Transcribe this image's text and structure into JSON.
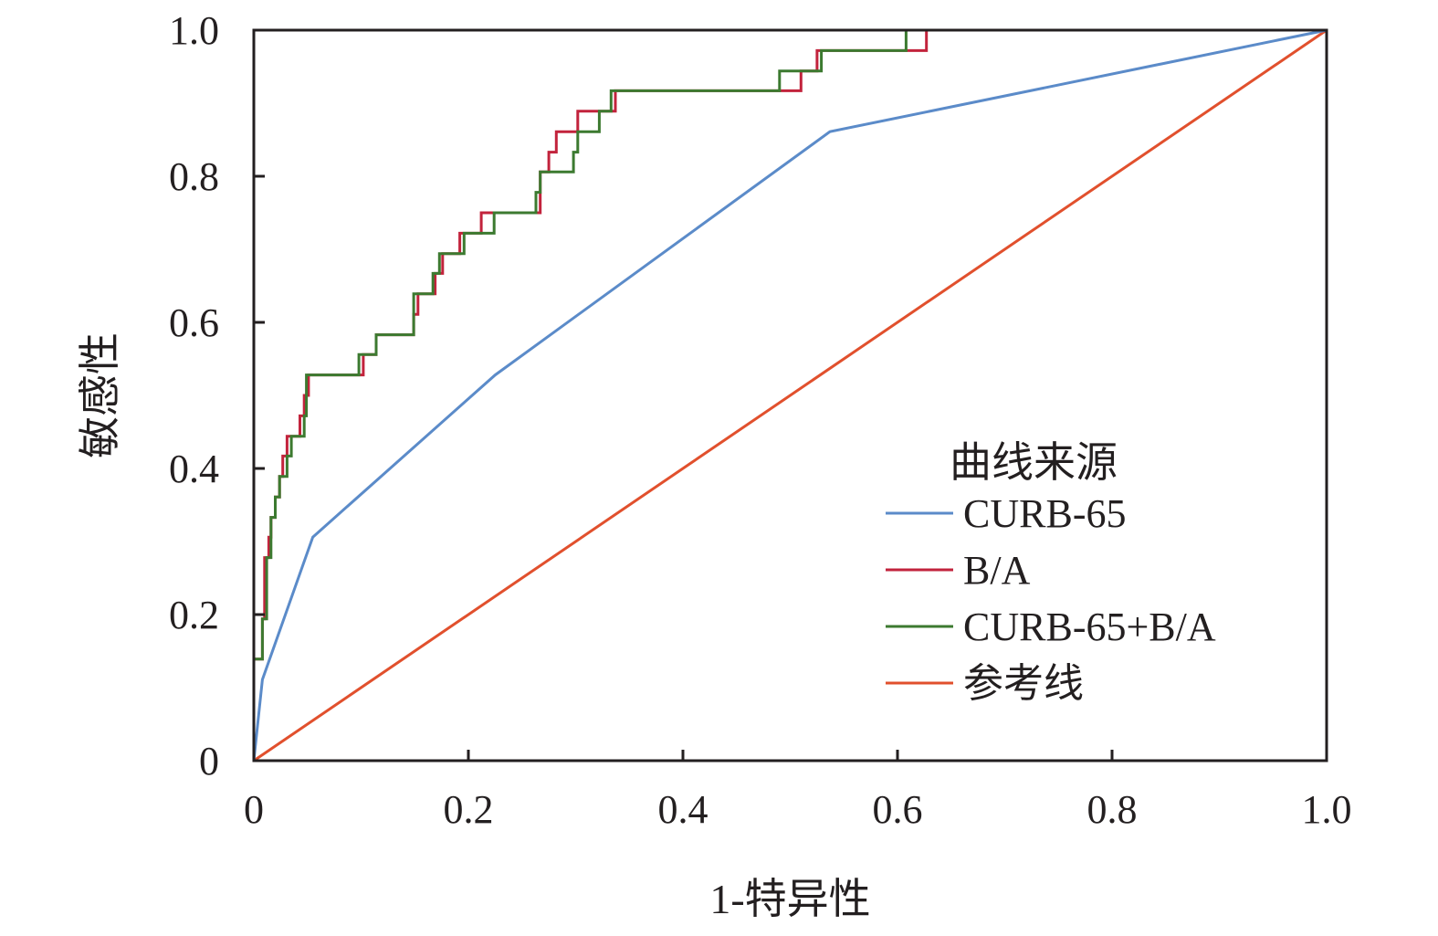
{
  "chart_data": {
    "type": "line",
    "title": "",
    "xlabel": "1-特异性",
    "ylabel": "敏感性",
    "xlim": [
      0,
      1
    ],
    "ylim": [
      0,
      1
    ],
    "x_ticks": [
      0,
      0.2,
      0.4,
      0.6,
      0.8,
      1.0
    ],
    "y_ticks": [
      0,
      0.2,
      0.4,
      0.6,
      0.8,
      1.0
    ],
    "x_tick_labels": [
      "0",
      "0.2",
      "0.4",
      "0.6",
      "0.8",
      "1.0"
    ],
    "y_tick_labels": [
      "0",
      "0.2",
      "0.4",
      "0.6",
      "0.8",
      "1.0"
    ],
    "grid": false,
    "legend": {
      "title": "曲线来源",
      "position": "lower-right inside plot"
    },
    "series": [
      {
        "name": "CURB-65",
        "color": "#5b8bc9",
        "points": [
          [
            0,
            0
          ],
          [
            0.008,
            0.111
          ],
          [
            0.055,
            0.306
          ],
          [
            0.225,
            0.528
          ],
          [
            0.537,
            0.861
          ],
          [
            1.0,
            1.0
          ]
        ]
      },
      {
        "name": "B/A",
        "color": "#c2233c",
        "points": [
          [
            0,
            0
          ],
          [
            0,
            0.139
          ],
          [
            0.008,
            0.139
          ],
          [
            0.008,
            0.194
          ],
          [
            0.01,
            0.194
          ],
          [
            0.01,
            0.278
          ],
          [
            0.014,
            0.278
          ],
          [
            0.014,
            0.306
          ],
          [
            0.016,
            0.306
          ],
          [
            0.016,
            0.333
          ],
          [
            0.02,
            0.333
          ],
          [
            0.02,
            0.361
          ],
          [
            0.024,
            0.361
          ],
          [
            0.024,
            0.389
          ],
          [
            0.027,
            0.389
          ],
          [
            0.027,
            0.417
          ],
          [
            0.031,
            0.417
          ],
          [
            0.031,
            0.444
          ],
          [
            0.043,
            0.444
          ],
          [
            0.043,
            0.472
          ],
          [
            0.047,
            0.472
          ],
          [
            0.047,
            0.5
          ],
          [
            0.051,
            0.5
          ],
          [
            0.051,
            0.528
          ],
          [
            0.102,
            0.528
          ],
          [
            0.102,
            0.556
          ],
          [
            0.114,
            0.556
          ],
          [
            0.114,
            0.583
          ],
          [
            0.149,
            0.583
          ],
          [
            0.149,
            0.611
          ],
          [
            0.153,
            0.611
          ],
          [
            0.153,
            0.639
          ],
          [
            0.169,
            0.639
          ],
          [
            0.169,
            0.667
          ],
          [
            0.176,
            0.667
          ],
          [
            0.176,
            0.694
          ],
          [
            0.192,
            0.694
          ],
          [
            0.192,
            0.722
          ],
          [
            0.212,
            0.722
          ],
          [
            0.212,
            0.75
          ],
          [
            0.267,
            0.75
          ],
          [
            0.267,
            0.806
          ],
          [
            0.275,
            0.806
          ],
          [
            0.275,
            0.833
          ],
          [
            0.282,
            0.833
          ],
          [
            0.282,
            0.861
          ],
          [
            0.302,
            0.861
          ],
          [
            0.302,
            0.889
          ],
          [
            0.314,
            0.889
          ],
          [
            0.314,
            0.889
          ],
          [
            0.337,
            0.889
          ],
          [
            0.337,
            0.917
          ],
          [
            0.51,
            0.917
          ],
          [
            0.51,
            0.944
          ],
          [
            0.525,
            0.944
          ],
          [
            0.525,
            0.972
          ],
          [
            0.627,
            0.972
          ],
          [
            0.627,
            1.0
          ],
          [
            1.0,
            1.0
          ]
        ]
      },
      {
        "name": "CURB-65+B/A",
        "color": "#3c7a30",
        "points": [
          [
            0,
            0
          ],
          [
            0,
            0.139
          ],
          [
            0.008,
            0.139
          ],
          [
            0.008,
            0.194
          ],
          [
            0.012,
            0.194
          ],
          [
            0.012,
            0.278
          ],
          [
            0.016,
            0.278
          ],
          [
            0.016,
            0.333
          ],
          [
            0.02,
            0.333
          ],
          [
            0.02,
            0.361
          ],
          [
            0.024,
            0.361
          ],
          [
            0.024,
            0.389
          ],
          [
            0.031,
            0.389
          ],
          [
            0.031,
            0.417
          ],
          [
            0.035,
            0.417
          ],
          [
            0.035,
            0.444
          ],
          [
            0.047,
            0.444
          ],
          [
            0.047,
            0.472
          ],
          [
            0.049,
            0.472
          ],
          [
            0.049,
            0.528
          ],
          [
            0.098,
            0.528
          ],
          [
            0.098,
            0.556
          ],
          [
            0.114,
            0.556
          ],
          [
            0.114,
            0.583
          ],
          [
            0.149,
            0.583
          ],
          [
            0.149,
            0.639
          ],
          [
            0.167,
            0.639
          ],
          [
            0.167,
            0.667
          ],
          [
            0.173,
            0.667
          ],
          [
            0.173,
            0.694
          ],
          [
            0.196,
            0.694
          ],
          [
            0.196,
            0.722
          ],
          [
            0.224,
            0.722
          ],
          [
            0.224,
            0.75
          ],
          [
            0.263,
            0.75
          ],
          [
            0.263,
            0.778
          ],
          [
            0.267,
            0.778
          ],
          [
            0.267,
            0.806
          ],
          [
            0.298,
            0.806
          ],
          [
            0.298,
            0.833
          ],
          [
            0.302,
            0.833
          ],
          [
            0.302,
            0.861
          ],
          [
            0.322,
            0.861
          ],
          [
            0.322,
            0.889
          ],
          [
            0.333,
            0.889
          ],
          [
            0.333,
            0.917
          ],
          [
            0.49,
            0.917
          ],
          [
            0.49,
            0.944
          ],
          [
            0.529,
            0.944
          ],
          [
            0.529,
            0.972
          ],
          [
            0.608,
            0.972
          ],
          [
            0.608,
            1.0
          ],
          [
            1.0,
            1.0
          ]
        ]
      },
      {
        "name": "参考线",
        "color": "#e1502d",
        "points": [
          [
            0,
            0
          ],
          [
            1.0,
            1.0
          ]
        ]
      }
    ]
  }
}
